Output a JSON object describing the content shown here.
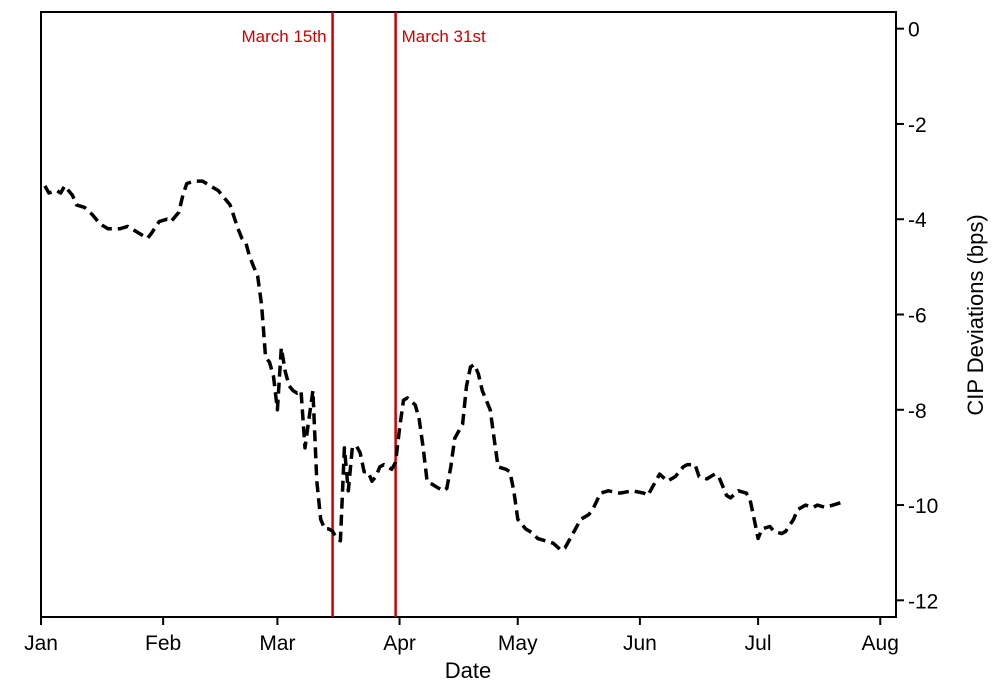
{
  "chart_data": {
    "type": "line",
    "title": "",
    "xlabel": "Date",
    "ylabel": "CIP Deviations (bps)",
    "y_axis_side": "right",
    "x_range": [
      "2020-01-01",
      "2020-08-05"
    ],
    "ylim": [
      -12.35,
      0.35
    ],
    "grid": false,
    "legend": "none",
    "x_ticks": [
      {
        "label": "Jan",
        "date": "2020-01-01"
      },
      {
        "label": "Feb",
        "date": "2020-02-01"
      },
      {
        "label": "Mar",
        "date": "2020-03-01"
      },
      {
        "label": "Apr",
        "date": "2020-04-01"
      },
      {
        "label": "May",
        "date": "2020-05-01"
      },
      {
        "label": "Jun",
        "date": "2020-06-01"
      },
      {
        "label": "Jul",
        "date": "2020-07-01"
      },
      {
        "label": "Aug",
        "date": "2020-08-01"
      }
    ],
    "y_ticks": [
      0,
      -2,
      -4,
      -6,
      -8,
      -10,
      -12
    ],
    "vertical_lines": [
      {
        "date": "2020-03-15",
        "label": "March 15th",
        "label_side": "left"
      },
      {
        "date": "2020-03-31",
        "label": "March 31st",
        "label_side": "right"
      }
    ],
    "series": [
      {
        "style": "dashed",
        "color": "#000000",
        "points": [
          [
            "2020-01-02",
            -3.3
          ],
          [
            "2020-01-03",
            -3.45
          ],
          [
            "2020-01-05",
            -3.4
          ],
          [
            "2020-01-06",
            -3.45
          ],
          [
            "2020-01-07",
            -3.3
          ],
          [
            "2020-01-09",
            -3.5
          ],
          [
            "2020-01-10",
            -3.7
          ],
          [
            "2020-01-12",
            -3.75
          ],
          [
            "2020-01-14",
            -3.9
          ],
          [
            "2020-01-16",
            -4.1
          ],
          [
            "2020-01-18",
            -4.2
          ],
          [
            "2020-01-21",
            -4.2
          ],
          [
            "2020-01-23",
            -4.15
          ],
          [
            "2020-01-25",
            -4.25
          ],
          [
            "2020-01-27",
            -4.35
          ],
          [
            "2020-01-28",
            -4.4
          ],
          [
            "2020-01-29",
            -4.3
          ],
          [
            "2020-01-31",
            -4.05
          ],
          [
            "2020-02-02",
            -4.0
          ],
          [
            "2020-02-03",
            -4.05
          ],
          [
            "2020-02-05",
            -3.85
          ],
          [
            "2020-02-06",
            -3.5
          ],
          [
            "2020-02-07",
            -3.25
          ],
          [
            "2020-02-09",
            -3.2
          ],
          [
            "2020-02-11",
            -3.2
          ],
          [
            "2020-02-13",
            -3.3
          ],
          [
            "2020-02-15",
            -3.4
          ],
          [
            "2020-02-16",
            -3.5
          ],
          [
            "2020-02-18",
            -3.7
          ],
          [
            "2020-02-20",
            -4.2
          ],
          [
            "2020-02-21",
            -4.4
          ],
          [
            "2020-02-22",
            -4.5
          ],
          [
            "2020-02-23",
            -4.8
          ],
          [
            "2020-02-24",
            -5.0
          ],
          [
            "2020-02-25",
            -5.2
          ],
          [
            "2020-02-26",
            -5.8
          ],
          [
            "2020-02-27",
            -6.9
          ],
          [
            "2020-02-28",
            -7.0
          ],
          [
            "2020-02-29",
            -7.3
          ],
          [
            "2020-03-01",
            -8.0
          ],
          [
            "2020-03-02",
            -6.7
          ],
          [
            "2020-03-03",
            -7.2
          ],
          [
            "2020-03-04",
            -7.5
          ],
          [
            "2020-03-05",
            -7.6
          ],
          [
            "2020-03-06",
            -7.65
          ],
          [
            "2020-03-07",
            -7.6
          ],
          [
            "2020-03-08",
            -8.8
          ],
          [
            "2020-03-09",
            -8.2
          ],
          [
            "2020-03-10",
            -7.6
          ],
          [
            "2020-03-11",
            -9.5
          ],
          [
            "2020-03-12",
            -10.3
          ],
          [
            "2020-03-13",
            -10.5
          ],
          [
            "2020-03-14",
            -10.5
          ],
          [
            "2020-03-15",
            -10.55
          ],
          [
            "2020-03-16",
            -10.7
          ],
          [
            "2020-03-17",
            -10.75
          ],
          [
            "2020-03-18",
            -8.8
          ],
          [
            "2020-03-19",
            -9.7
          ],
          [
            "2020-03-20",
            -8.8
          ],
          [
            "2020-03-21",
            -8.75
          ],
          [
            "2020-03-22",
            -8.9
          ],
          [
            "2020-03-23",
            -9.3
          ],
          [
            "2020-03-24",
            -9.3
          ],
          [
            "2020-03-25",
            -9.5
          ],
          [
            "2020-03-26",
            -9.4
          ],
          [
            "2020-03-27",
            -9.2
          ],
          [
            "2020-03-28",
            -9.15
          ],
          [
            "2020-03-29",
            -9.2
          ],
          [
            "2020-03-30",
            -9.25
          ],
          [
            "2020-03-31",
            -9.1
          ],
          [
            "2020-04-01",
            -8.4
          ],
          [
            "2020-04-02",
            -7.8
          ],
          [
            "2020-04-03",
            -7.75
          ],
          [
            "2020-04-05",
            -7.9
          ],
          [
            "2020-04-06",
            -8.2
          ],
          [
            "2020-04-07",
            -8.8
          ],
          [
            "2020-04-08",
            -9.5
          ],
          [
            "2020-04-10",
            -9.6
          ],
          [
            "2020-04-12",
            -9.7
          ],
          [
            "2020-04-13",
            -9.65
          ],
          [
            "2020-04-14",
            -9.2
          ],
          [
            "2020-04-15",
            -8.6
          ],
          [
            "2020-04-17",
            -8.3
          ],
          [
            "2020-04-18",
            -7.5
          ],
          [
            "2020-04-19",
            -7.1
          ],
          [
            "2020-04-20",
            -7.05
          ],
          [
            "2020-04-21",
            -7.25
          ],
          [
            "2020-04-22",
            -7.6
          ],
          [
            "2020-04-24",
            -8.0
          ],
          [
            "2020-04-25",
            -8.6
          ],
          [
            "2020-04-26",
            -9.2
          ],
          [
            "2020-04-28",
            -9.25
          ],
          [
            "2020-04-29",
            -9.3
          ],
          [
            "2020-04-30",
            -9.7
          ],
          [
            "2020-05-01",
            -10.3
          ],
          [
            "2020-05-03",
            -10.5
          ],
          [
            "2020-05-05",
            -10.6
          ],
          [
            "2020-05-06",
            -10.7
          ],
          [
            "2020-05-08",
            -10.75
          ],
          [
            "2020-05-10",
            -10.8
          ],
          [
            "2020-05-12",
            -10.95
          ],
          [
            "2020-05-13",
            -10.9
          ],
          [
            "2020-05-15",
            -10.6
          ],
          [
            "2020-05-17",
            -10.3
          ],
          [
            "2020-05-19",
            -10.2
          ],
          [
            "2020-05-20",
            -10.1
          ],
          [
            "2020-05-22",
            -9.75
          ],
          [
            "2020-05-24",
            -9.7
          ],
          [
            "2020-05-27",
            -9.75
          ],
          [
            "2020-05-30",
            -9.7
          ],
          [
            "2020-06-02",
            -9.75
          ],
          [
            "2020-06-03",
            -9.8
          ],
          [
            "2020-06-05",
            -9.5
          ],
          [
            "2020-06-06",
            -9.35
          ],
          [
            "2020-06-08",
            -9.5
          ],
          [
            "2020-06-10",
            -9.4
          ],
          [
            "2020-06-12",
            -9.2
          ],
          [
            "2020-06-13",
            -9.15
          ],
          [
            "2020-06-15",
            -9.15
          ],
          [
            "2020-06-16",
            -9.4
          ],
          [
            "2020-06-18",
            -9.45
          ],
          [
            "2020-06-20",
            -9.35
          ],
          [
            "2020-06-21",
            -9.4
          ],
          [
            "2020-06-23",
            -9.8
          ],
          [
            "2020-06-24",
            -9.85
          ],
          [
            "2020-06-26",
            -9.7
          ],
          [
            "2020-06-28",
            -9.75
          ],
          [
            "2020-06-29",
            -9.9
          ],
          [
            "2020-06-30",
            -10.3
          ],
          [
            "2020-07-01",
            -10.7
          ],
          [
            "2020-07-02",
            -10.5
          ],
          [
            "2020-07-04",
            -10.45
          ],
          [
            "2020-07-05",
            -10.55
          ],
          [
            "2020-07-07",
            -10.6
          ],
          [
            "2020-07-08",
            -10.55
          ],
          [
            "2020-07-10",
            -10.3
          ],
          [
            "2020-07-11",
            -10.1
          ],
          [
            "2020-07-13",
            -10.0
          ],
          [
            "2020-07-15",
            -10.05
          ],
          [
            "2020-07-16",
            -10.0
          ],
          [
            "2020-07-18",
            -10.05
          ],
          [
            "2020-07-20",
            -10.0
          ],
          [
            "2020-07-22",
            -9.95
          ]
        ]
      }
    ],
    "colors": {
      "series": "#000000",
      "event_lines": "#cc0000",
      "axes": "#000000"
    }
  }
}
